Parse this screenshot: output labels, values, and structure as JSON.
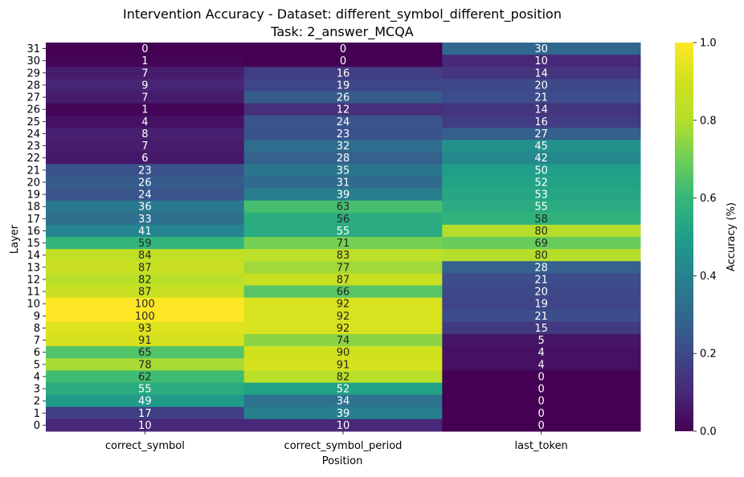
{
  "chart_data": {
    "type": "heatmap",
    "title": "Intervention Accuracy - Dataset: different_symbol_different_position",
    "subtitle": "Task: 2_answer_MCQA",
    "xlabel": "Position",
    "ylabel": "Layer",
    "columns": [
      "correct_symbol",
      "correct_symbol_period",
      "last_token"
    ],
    "rows": [
      31,
      30,
      29,
      28,
      27,
      26,
      25,
      24,
      23,
      22,
      21,
      20,
      19,
      18,
      17,
      16,
      15,
      14,
      13,
      12,
      11,
      10,
      9,
      8,
      7,
      6,
      5,
      4,
      3,
      2,
      1,
      0
    ],
    "values": [
      [
        0,
        0,
        30
      ],
      [
        1,
        0,
        10
      ],
      [
        7,
        16,
        14
      ],
      [
        9,
        19,
        20
      ],
      [
        7,
        26,
        21
      ],
      [
        1,
        12,
        14
      ],
      [
        4,
        24,
        16
      ],
      [
        8,
        23,
        27
      ],
      [
        7,
        32,
        45
      ],
      [
        6,
        28,
        42
      ],
      [
        23,
        35,
        50
      ],
      [
        26,
        31,
        52
      ],
      [
        24,
        39,
        53
      ],
      [
        36,
        63,
        55
      ],
      [
        33,
        56,
        58
      ],
      [
        41,
        55,
        80
      ],
      [
        59,
        71,
        69
      ],
      [
        84,
        83,
        80
      ],
      [
        87,
        77,
        28
      ],
      [
        82,
        87,
        21
      ],
      [
        87,
        66,
        20
      ],
      [
        100,
        92,
        19
      ],
      [
        100,
        92,
        21
      ],
      [
        93,
        92,
        15
      ],
      [
        91,
        74,
        5
      ],
      [
        65,
        90,
        4
      ],
      [
        78,
        91,
        4
      ],
      [
        62,
        82,
        0
      ],
      [
        55,
        52,
        0
      ],
      [
        49,
        34,
        0
      ],
      [
        17,
        39,
        0
      ],
      [
        10,
        10,
        0
      ]
    ],
    "colorbar": {
      "label": "Accuracy (%)",
      "ticks": [
        "0.0",
        "0.2",
        "0.4",
        "0.6",
        "0.8",
        "1.0"
      ],
      "range": [
        0,
        1
      ],
      "colormap": "viridis"
    }
  }
}
